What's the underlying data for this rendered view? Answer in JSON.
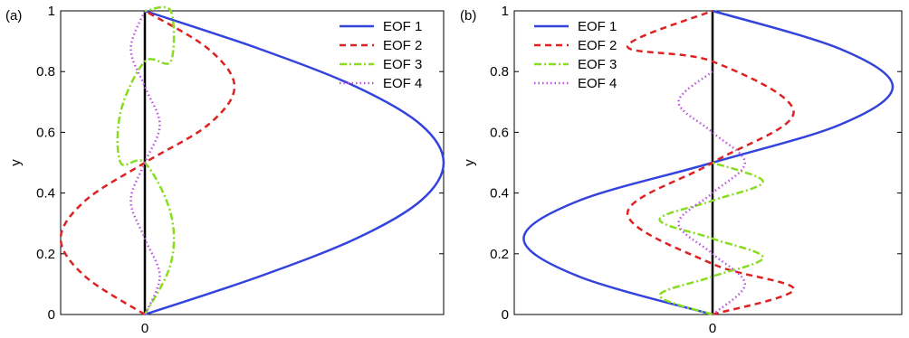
{
  "chart_data": [
    {
      "type": "line",
      "panel_label": "(a)",
      "xlabel": "",
      "ylabel": "y",
      "ylim": [
        0,
        1
      ],
      "xlim": [
        -0.3,
        1.0
      ],
      "xticks": [
        {
          "value": 0,
          "label": "0"
        }
      ],
      "yticks": [
        {
          "value": 0,
          "label": "0"
        },
        {
          "value": 0.2,
          "label": "0.2"
        },
        {
          "value": 0.4,
          "label": "0.4"
        },
        {
          "value": 0.6,
          "label": "0.6"
        },
        {
          "value": 0.8,
          "label": "0.8"
        },
        {
          "value": 1,
          "label": "1"
        }
      ],
      "grid": false,
      "legend_position": "top-right",
      "zero_line": true,
      "series": [
        {
          "name": "EOF 1",
          "color": "#3344dd",
          "dash": "solid",
          "x": [
            0,
            0.3827,
            0.7071,
            0.9239,
            1,
            0.9239,
            0.7071,
            0.3827,
            0
          ],
          "y": [
            0,
            0.125,
            0.25,
            0.375,
            0.5,
            0.625,
            0.75,
            0.875,
            1
          ]
        },
        {
          "name": "EOF 2",
          "color": "#dd2222",
          "dash": "dashed",
          "x": [
            0,
            -0.2121,
            -0.3,
            -0.2121,
            0,
            0.2121,
            0.3,
            0.2121,
            0
          ],
          "y": [
            0,
            0.125,
            0.25,
            0.375,
            0.5,
            0.625,
            0.75,
            0.875,
            1
          ]
        },
        {
          "name": "EOF 3",
          "color": "#88dd22",
          "dash": "dashdot",
          "x": [
            0,
            0.0866,
            0.0866,
            0,
            -0.0866,
            -0.0866,
            0,
            0.0866,
            0.0866,
            0
          ],
          "y": [
            0,
            0.1667,
            0.3333,
            0.5,
            0.5,
            0.6667,
            0.8333,
            0.8333,
            1,
            1
          ]
        },
        {
          "name": "EOF 4",
          "color": "#bb55dd",
          "dash": "dotted",
          "x": [
            0,
            0.05,
            0,
            -0.05,
            0,
            0.05,
            0,
            -0.05,
            0
          ],
          "y": [
            0,
            0.125,
            0.25,
            0.375,
            0.5,
            0.625,
            0.75,
            0.875,
            1
          ]
        }
      ]
    },
    {
      "type": "line",
      "panel_label": "(b)",
      "xlabel": "",
      "ylabel": "y",
      "ylim": [
        0,
        1
      ],
      "xlim": [
        -1.05,
        1.05
      ],
      "xticks": [
        {
          "value": 0,
          "label": "0"
        }
      ],
      "yticks": [
        {
          "value": 0,
          "label": "0"
        },
        {
          "value": 0.2,
          "label": "0.2"
        },
        {
          "value": 0.4,
          "label": "0.4"
        },
        {
          "value": 0.6,
          "label": "0.6"
        },
        {
          "value": 0.8,
          "label": "0.8"
        },
        {
          "value": 1,
          "label": "1"
        }
      ],
      "grid": false,
      "legend_position": "top-left",
      "zero_line": true,
      "series": [
        {
          "name": "EOF 1",
          "color": "#3344dd",
          "dash": "solid",
          "x": [
            0,
            -0.7071,
            -1,
            -0.7071,
            0,
            0.7071,
            1,
            0.7071,
            0
          ],
          "y": [
            0,
            0.125,
            0.25,
            0.375,
            0.5,
            0.625,
            0.75,
            0.875,
            1
          ]
        },
        {
          "name": "EOF 2",
          "color": "#dd2222",
          "dash": "dashed",
          "x": [
            0,
            0.45,
            0,
            -0.45,
            0,
            0.45,
            0,
            -0.45,
            0
          ],
          "y": [
            0,
            0.0833,
            0.1667,
            0.3333,
            0.5,
            0.6667,
            0.8333,
            0.8833,
            1
          ]
        },
        {
          "name": "EOF 3",
          "color": "#88dd22",
          "dash": "dashdot",
          "x": [
            0,
            -0.28,
            0,
            0.28,
            0,
            -0.28,
            0,
            0.28,
            0
          ],
          "y": [
            0,
            0.0625,
            0.125,
            0.1875,
            0.25,
            0.3125,
            0.375,
            0.4375,
            0.5
          ]
        },
        {
          "name": "EOF 4",
          "color": "#bb55dd",
          "dash": "dotted",
          "x": [
            0,
            0.18,
            0,
            -0.18,
            0,
            0.18,
            0,
            -0.18,
            0
          ],
          "y": [
            0,
            0.1,
            0.2,
            0.3,
            0.4,
            0.5,
            0.6,
            0.7,
            0.8
          ]
        }
      ]
    }
  ]
}
